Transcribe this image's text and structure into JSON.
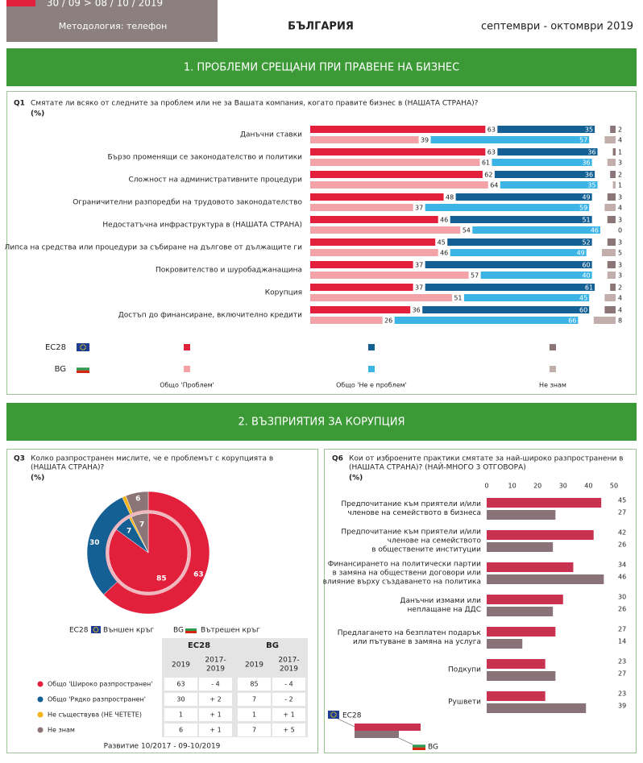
{
  "header": {
    "dates": "30 / 09 > 08 / 10 / 2019",
    "method": "Методология: телефон",
    "country": "БЪЛГАРИЯ",
    "period": "септември - октомври 2019"
  },
  "sections": [
    "1. ПРОБЛЕМИ СРЕЩАНИ ПРИ ПРАВЕНЕ НА БИЗНЕС",
    "2. ВЪЗПРИЯТИЯ ЗА КОРУПЦИЯ"
  ],
  "chart_data": [
    {
      "type": "diverging-bar",
      "code": "Q1",
      "question": [
        "Смятате ли всяко от следните за проблем или не за Вашата компания, когато правите бизнес в (НАШАТА СТРАНА)?"
      ],
      "unit": "(%)",
      "rows": [
        "EC28",
        "BG"
      ],
      "categories": [
        "Данъчни ставки",
        "Бързо променящи се законодателство и политики",
        "Сложност на административните процедури",
        "Ограничителни разпоредби на трудовото законодателство",
        "Недостатъчна инфраструктура в (НАШАТА СТРАНА)",
        "Липса на средства или процедури за събиране на дълговe от дължащите ги",
        "Покровителство и шуробаджанащина",
        "Корупция",
        "Достъп до финансиране, включително кредити"
      ],
      "series": [
        {
          "name": "Общо 'Проблем'",
          "colors": [
            "#e2203b",
            "#f3a2a7"
          ],
          "values": [
            [
              63,
              39
            ],
            [
              63,
              61
            ],
            [
              62,
              64
            ],
            [
              48,
              37
            ],
            [
              46,
              54
            ],
            [
              45,
              46
            ],
            [
              37,
              57
            ],
            [
              37,
              51
            ],
            [
              36,
              26
            ]
          ]
        },
        {
          "name": "Общо 'Не е проблем'",
          "colors": [
            "#145f94",
            "#3db4e6"
          ],
          "values": [
            [
              35,
              57
            ],
            [
              36,
              36
            ],
            [
              36,
              35
            ],
            [
              49,
              59
            ],
            [
              51,
              46
            ],
            [
              52,
              49
            ],
            [
              60,
              40
            ],
            [
              61,
              45
            ],
            [
              60,
              66
            ]
          ]
        },
        {
          "name": "Не знам",
          "colors": [
            "#8c7577",
            "#c2aeab"
          ],
          "values": [
            [
              2,
              4
            ],
            [
              1,
              3
            ],
            [
              2,
              1
            ],
            [
              3,
              4
            ],
            [
              3,
              0
            ],
            [
              3,
              5
            ],
            [
              3,
              3
            ],
            [
              2,
              4
            ],
            [
              4,
              8
            ]
          ]
        }
      ]
    },
    {
      "type": "nested-pie",
      "code": "Q3",
      "question": [
        "Колко разпространен мислите, че е проблемът с корупцията в",
        "(НАШАТА СТРАНА)?"
      ],
      "unit": "(%)",
      "categories": [
        "Общо 'Широко разпространен'",
        "Общо 'Рядко разпространен'",
        "Не съществува (НЕ ЧЕТЕТЕ)",
        "Не знам"
      ],
      "colors": [
        "#e2203b",
        "#145f94",
        "#f3b31b",
        "#8c7577"
      ],
      "series": [
        {
          "name": "EC28",
          "ring_label": "Външен кръг",
          "values": [
            63,
            30,
            1,
            6
          ]
        },
        {
          "name": "BG",
          "ring_label": "Вътрешен кръг",
          "values": [
            85,
            7,
            1,
            7
          ]
        }
      ],
      "table": {
        "columns": [
          "2019",
          [
            "2017-",
            "2019"
          ]
        ],
        "changes": [
          [
            "- 4",
            "- 4"
          ],
          [
            "+ 2",
            "- 2"
          ],
          [
            "+ 1",
            "+ 1"
          ],
          [
            "+ 1",
            "+ 5"
          ]
        ],
        "footer": "Развитие 10/2017 - 09-10/2019"
      }
    },
    {
      "type": "hbar",
      "code": "Q6",
      "question": [
        "Кои от изброените практики смятате за най-широко разпространени в",
        "(НАШАТА СТРАНА)? (НАЙ-МНОГО 3 ОТГОВОРА)"
      ],
      "unit": "(%)",
      "xlim": [
        0,
        50
      ],
      "xticks": [
        0,
        10,
        20,
        30,
        40,
        50
      ],
      "categories": [
        [
          "Предпочитание към приятели и/или",
          "членове на семейството в бизнеса"
        ],
        [
          "Предпочитание към приятели и/или",
          "членове на семейството",
          "в обществените институции"
        ],
        [
          "Финансирането на политически партии",
          "в замяна на обществени договори или",
          "влияние върху създаването на политика"
        ],
        [
          "Данъчни измами или",
          "неплащане на ДДС"
        ],
        [
          "Предлагането на безплатен подарък",
          "или пътуване в замяна на услуга"
        ],
        [
          "Подкупи"
        ],
        [
          "Рушвети"
        ]
      ],
      "series": [
        {
          "name": "EC28",
          "color": "#c8314f",
          "values": [
            45,
            42,
            34,
            30,
            27,
            23,
            23
          ]
        },
        {
          "name": "BG",
          "color": "#8a7378",
          "values": [
            27,
            26,
            46,
            26,
            14,
            27,
            39
          ]
        }
      ]
    }
  ]
}
